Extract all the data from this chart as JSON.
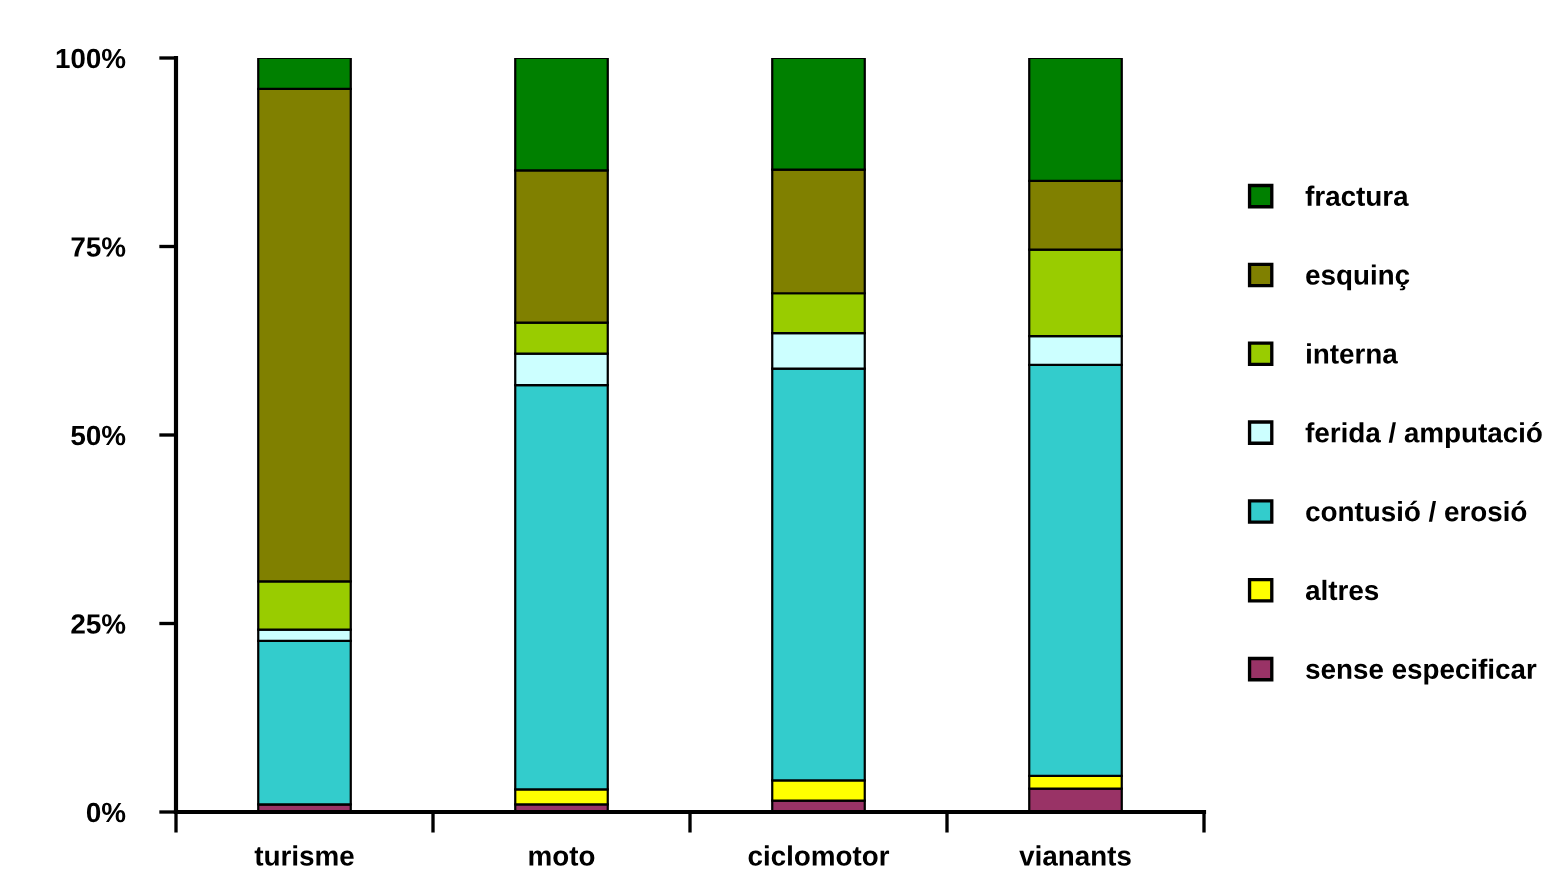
{
  "chart_data": {
    "type": "bar",
    "stacked": true,
    "categories": [
      "turisme",
      "moto",
      "ciclomotor",
      "vianants"
    ],
    "series": [
      {
        "name": "sense especificar",
        "color": "#993366",
        "values": [
          1.0,
          1.0,
          1.5,
          3.1
        ]
      },
      {
        "name": "altres",
        "color": "#ffff00",
        "values": [
          0,
          2.0,
          2.7,
          1.7
        ]
      },
      {
        "name": "contusió / erosió",
        "color": "#33cccc",
        "values": [
          21.7,
          53.6,
          54.6,
          54.5
        ]
      },
      {
        "name": "ferida / amputació",
        "color": "#ccffff",
        "values": [
          1.5,
          4.2,
          4.7,
          3.8
        ]
      },
      {
        "name": "interna",
        "color": "#99cc00",
        "values": [
          6.4,
          4.1,
          5.3,
          11.5
        ]
      },
      {
        "name": "esquinç",
        "color": "#808000",
        "values": [
          65.3,
          20.2,
          16.4,
          9.1
        ]
      },
      {
        "name": "fractura",
        "color": "#008000",
        "values": [
          4.1,
          14.9,
          14.8,
          16.3
        ]
      }
    ],
    "ylim": [
      0,
      100
    ],
    "yticks": [
      {
        "value": 0,
        "label": "0%"
      },
      {
        "value": 25,
        "label": "25%"
      },
      {
        "value": 50,
        "label": "50%"
      },
      {
        "value": 75,
        "label": "75%"
      },
      {
        "value": 100,
        "label": "100%"
      }
    ],
    "grid": false,
    "legend": "right"
  }
}
